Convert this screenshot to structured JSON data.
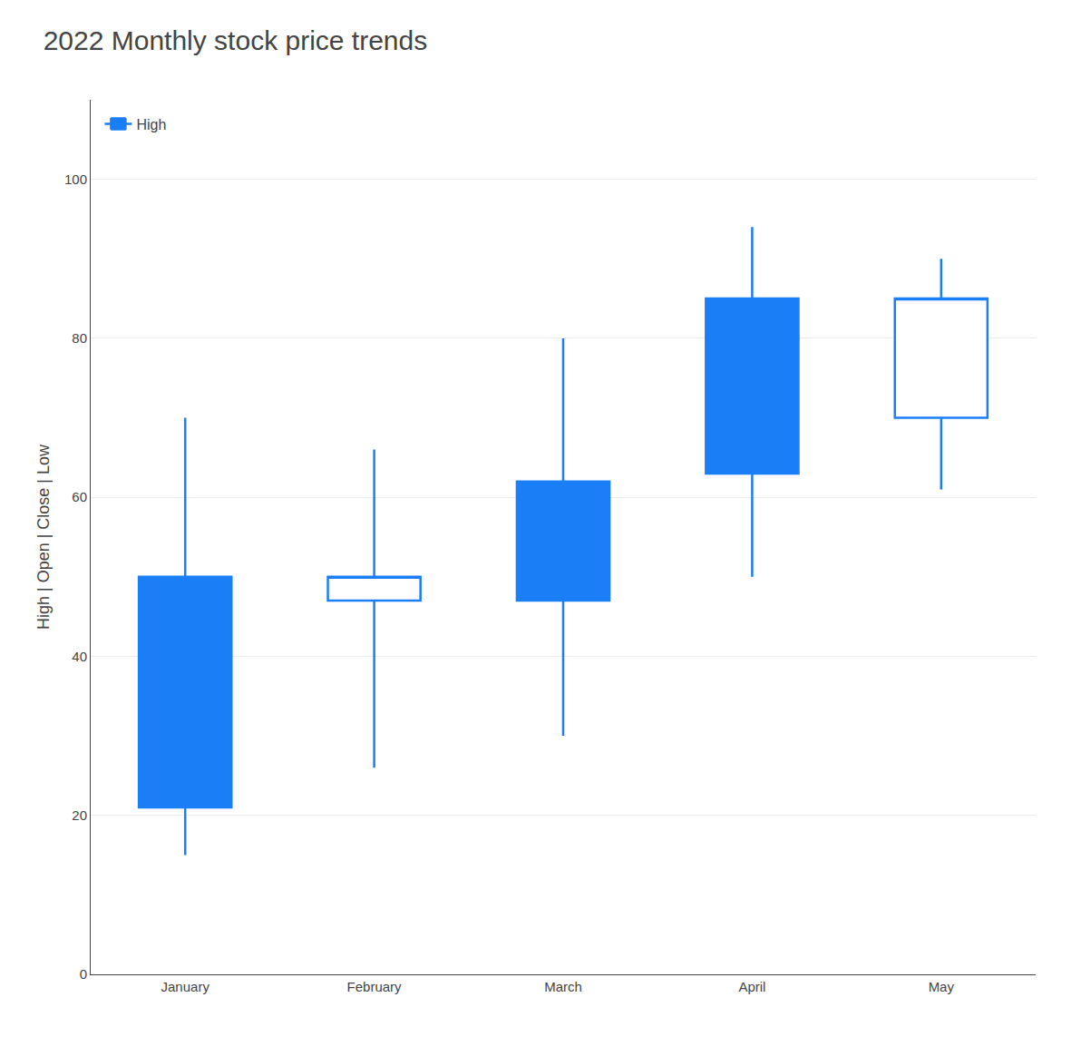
{
  "chart_data": {
    "type": "candlestick",
    "title": "2022 Monthly stock price trends",
    "ylabel": "High | Open | Close | Low",
    "categories": [
      "January",
      "February",
      "March",
      "April",
      "May"
    ],
    "series": [
      {
        "name": "High",
        "color": "#1a7ef7",
        "open": [
          50,
          47,
          62,
          85,
          70
        ],
        "close": [
          21,
          50,
          47,
          63,
          85
        ],
        "high": [
          70,
          66,
          80,
          94,
          90
        ],
        "low": [
          15,
          26,
          30,
          50,
          61
        ],
        "bullish": [
          false,
          true,
          false,
          false,
          true
        ]
      }
    ],
    "ylim": [
      0,
      110
    ],
    "yticks": [
      0,
      20,
      40,
      60,
      80,
      100
    ],
    "grid": true,
    "legend": "upper left"
  }
}
